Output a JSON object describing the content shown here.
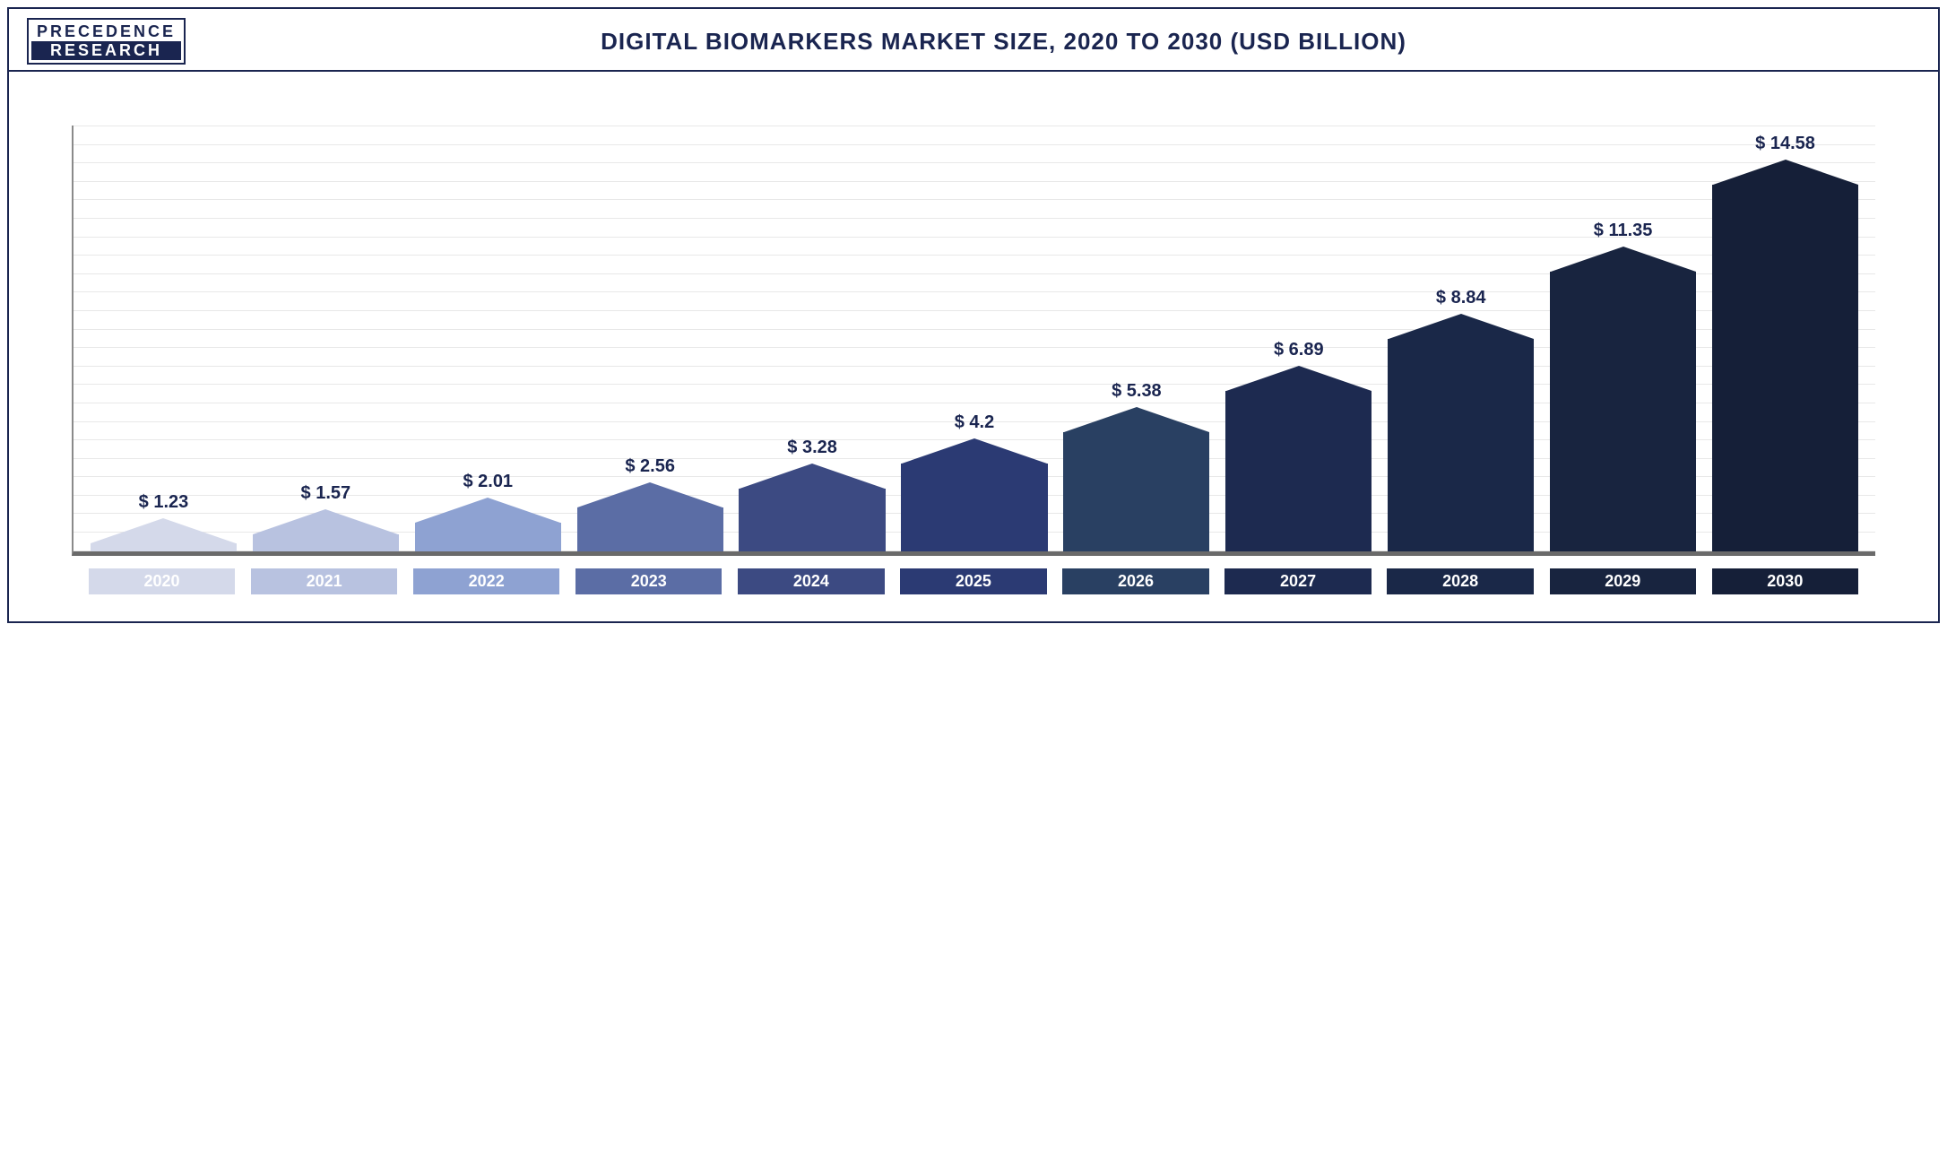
{
  "logo": {
    "top": "PRECEDENCE",
    "bottom": "RESEARCH"
  },
  "title": "DIGITAL BIOMARKERS MARKET SIZE, 2020 TO 2030 (USD BILLION)",
  "chart": {
    "type": "bar",
    "ymax": 16,
    "grid_count": 24,
    "grid_color": "#e8e8e8",
    "axis_color": "#6a6a6a",
    "peak_height": 28,
    "label_fontsize": 20,
    "label_color": "#1a2550",
    "tick_fontsize": 18,
    "tick_text_color": "#ffffff",
    "bars": [
      {
        "year": "2020",
        "value": 1.23,
        "label": "$ 1.23",
        "color": "#d4d9ea"
      },
      {
        "year": "2021",
        "value": 1.57,
        "label": "$ 1.57",
        "color": "#b8c2e0"
      },
      {
        "year": "2022",
        "value": 2.01,
        "label": "$ 2.01",
        "color": "#8ea2d2"
      },
      {
        "year": "2023",
        "value": 2.56,
        "label": "$ 2.56",
        "color": "#5b6da5"
      },
      {
        "year": "2024",
        "value": 3.28,
        "label": "$ 3.28",
        "color": "#3c4a82"
      },
      {
        "year": "2025",
        "value": 4.2,
        "label": "$ 4.2",
        "color": "#2b3a73"
      },
      {
        "year": "2026",
        "value": 5.38,
        "label": "$ 5.38",
        "color": "#294062"
      },
      {
        "year": "2027",
        "value": 6.89,
        "label": "$ 6.89",
        "color": "#1d2a50"
      },
      {
        "year": "2028",
        "value": 8.84,
        "label": "$ 8.84",
        "color": "#1a2848"
      },
      {
        "year": "2029",
        "value": 11.35,
        "label": "$ 11.35",
        "color": "#18243f"
      },
      {
        "year": "2030",
        "value": 14.58,
        "label": "$ 14.58",
        "color": "#151f38"
      }
    ]
  }
}
